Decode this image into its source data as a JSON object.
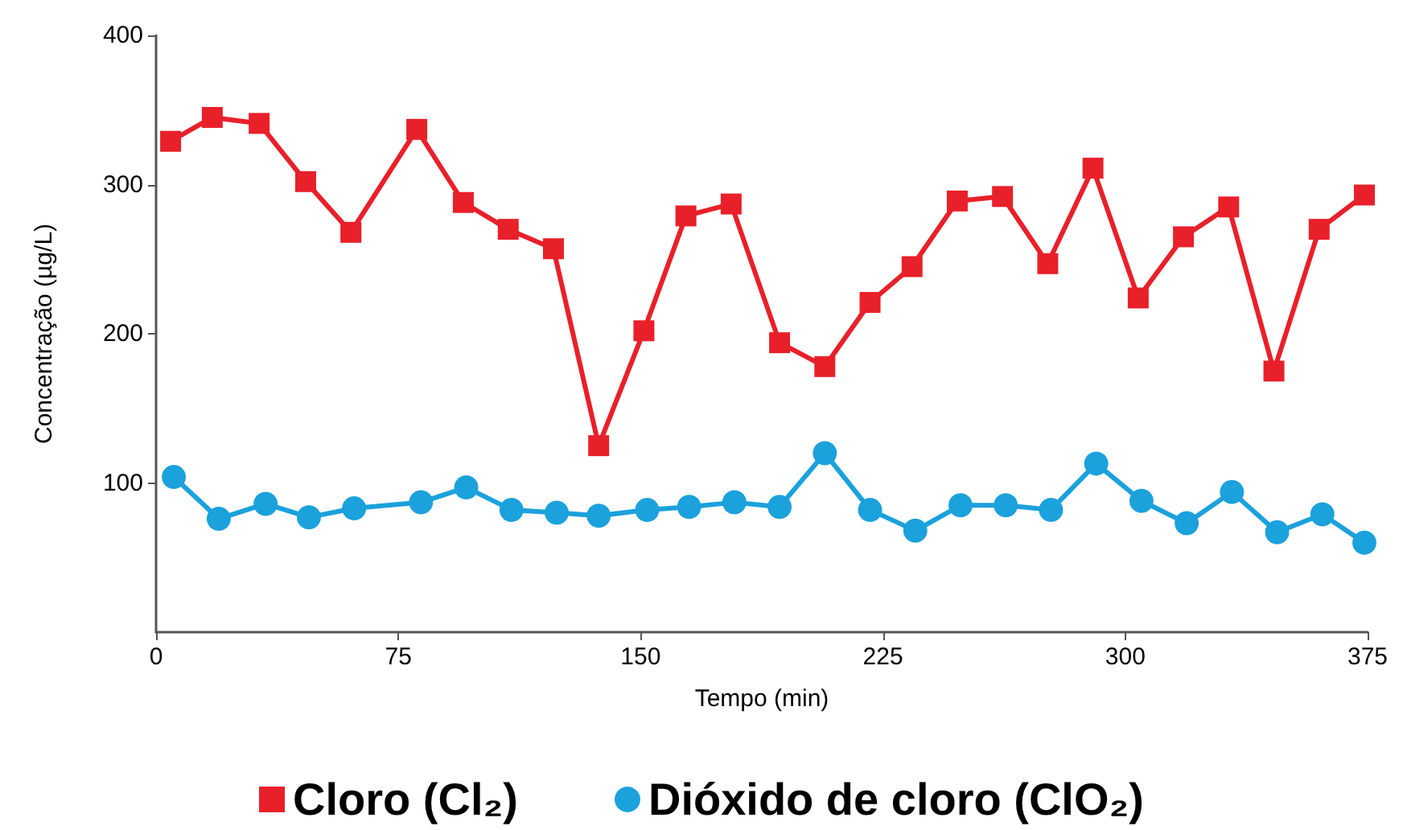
{
  "chart_data": {
    "type": "line",
    "xlabel": "Tempo (min)",
    "ylabel": "Concentração (µg/L)",
    "xlim": [
      0,
      375
    ],
    "xticks": [
      0,
      75,
      150,
      225,
      300,
      375
    ],
    "ylim": [
      0,
      400
    ],
    "yticks": [
      100,
      200,
      300,
      400
    ],
    "grid": false,
    "legend": "bottom",
    "series": [
      {
        "name": "Cloro (Cl₂)",
        "color": "#e8202a",
        "marker": "square",
        "x": [
          4.5,
          17.4,
          31.9,
          46.3,
          60.3,
          80.7,
          95.1,
          109,
          123,
          137,
          151,
          164,
          178,
          193,
          207,
          221,
          234,
          248,
          262,
          276,
          290,
          304,
          318,
          332,
          346,
          360,
          374
        ],
        "values": [
          329,
          345,
          341,
          302,
          268,
          337,
          288,
          270,
          257,
          125,
          202,
          279,
          287,
          194,
          178,
          221,
          245,
          289,
          292,
          247,
          311,
          224,
          265,
          285,
          175,
          270,
          293
        ]
      },
      {
        "name": "Dióxido de cloro (ClO₂)",
        "color": "#1ba1dc",
        "marker": "circle",
        "x": [
          5.5,
          19.4,
          33.9,
          47.3,
          61.3,
          82,
          96,
          110,
          124,
          137,
          152,
          165,
          179,
          193,
          207,
          221,
          235,
          249,
          263,
          277,
          291,
          305,
          319,
          333,
          347,
          361,
          374
        ],
        "values": [
          104,
          76,
          86,
          77,
          83,
          87,
          97,
          82,
          80,
          78,
          82,
          84,
          87,
          84,
          120,
          82,
          68,
          85,
          85,
          82,
          113,
          88,
          73,
          94,
          67,
          79,
          60
        ]
      }
    ]
  }
}
